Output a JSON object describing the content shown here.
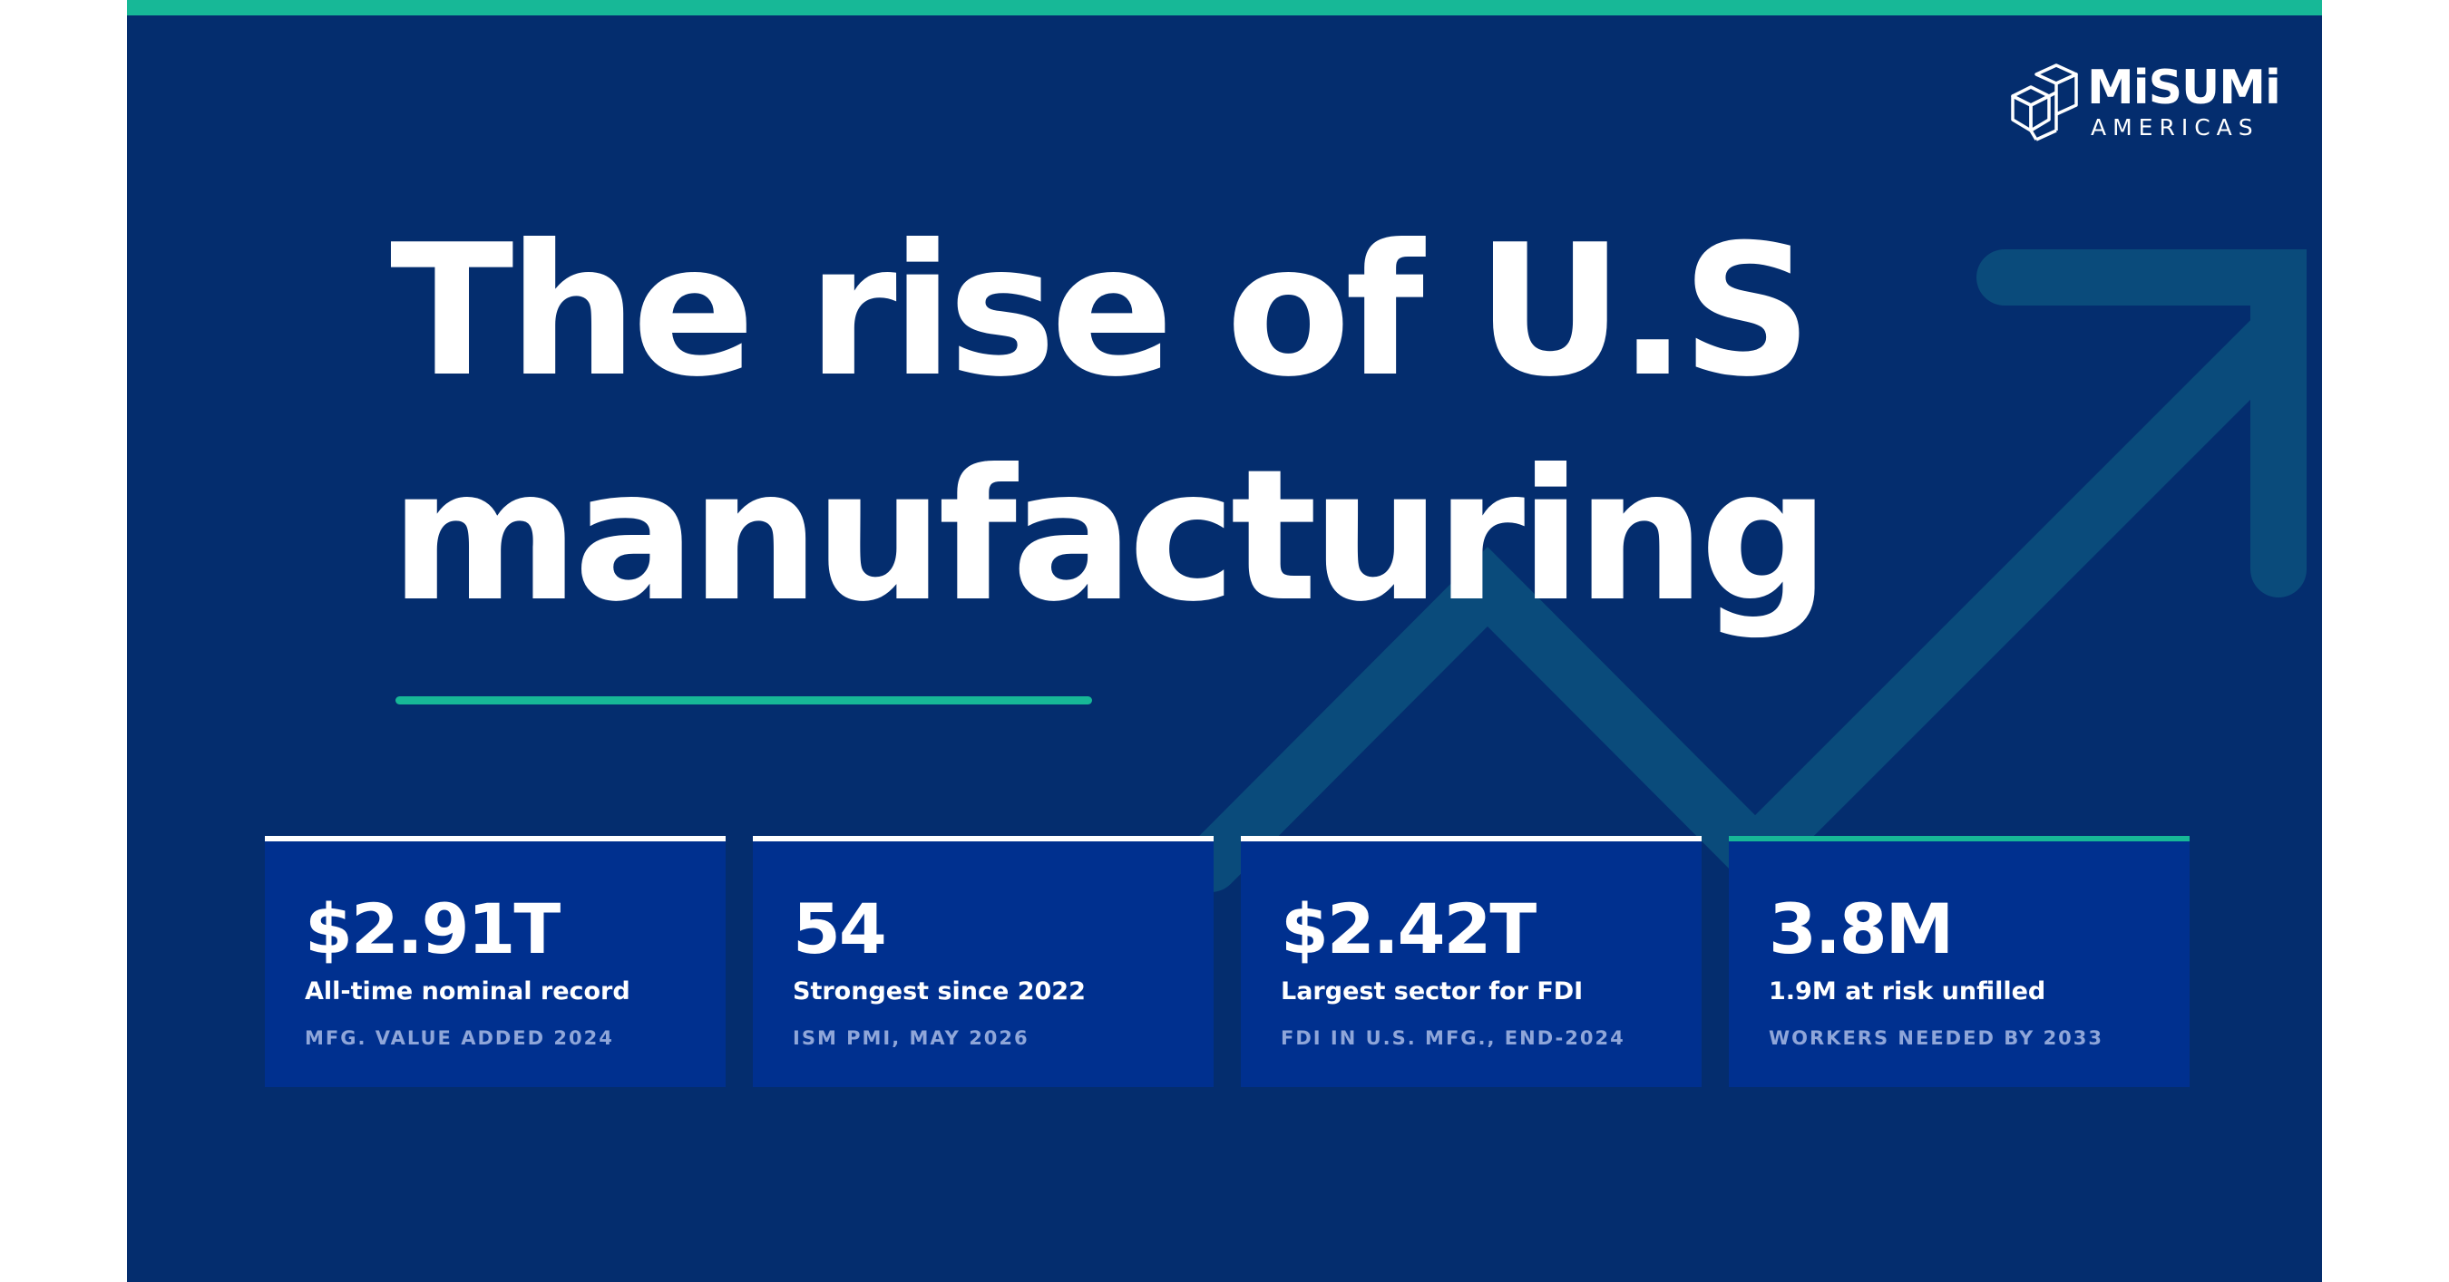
{
  "brand": {
    "name": "MiSUMi",
    "region": "AMERICAS",
    "logo_icon": "stacked-cubes-icon"
  },
  "headline": {
    "line1": "The rise of U.S",
    "line2": "manufacturing"
  },
  "background": {
    "icon": "rising-trend-arrow-icon"
  },
  "colors": {
    "panel": "#042d6e",
    "card": "#00308f",
    "accent": "#17b897",
    "arrow": "#0a4b7b",
    "source_text": "#8fa6d9"
  },
  "stats": [
    {
      "value": "$2.91T",
      "caption": "All-time nominal record",
      "source": "MFG. VALUE ADDED 2024"
    },
    {
      "value": "54",
      "caption": "Strongest since 2022",
      "source": "ISM PMI, MAY 2026"
    },
    {
      "value": "$2.42T",
      "caption": "Largest sector for FDI",
      "source": "FDI IN U.S. MFG., END-2024"
    },
    {
      "value": "3.8M",
      "caption": "1.9M at risk unfilled",
      "source": "WORKERS NEEDED BY 2033"
    }
  ]
}
